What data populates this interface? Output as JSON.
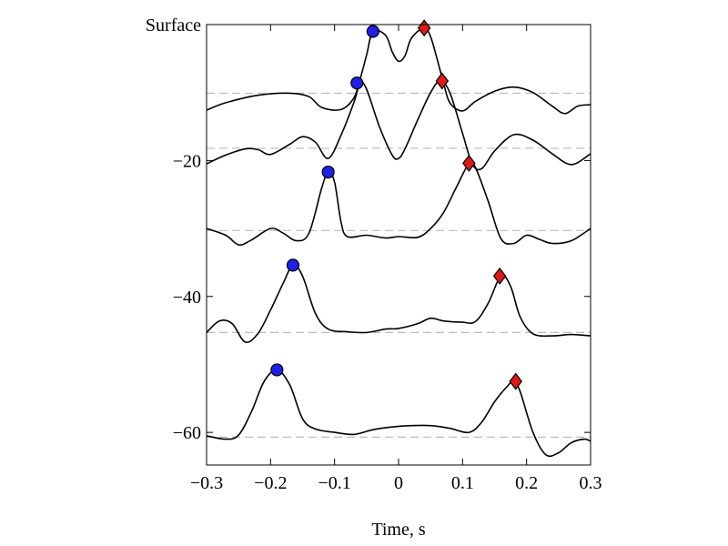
{
  "chart_data": {
    "type": "line",
    "title": "",
    "xlabel": "Time, s",
    "ylabel": "",
    "top_label": "Surface",
    "xlim": [
      -0.3,
      0.3
    ],
    "ylim": [
      -64.8,
      0
    ],
    "x_ticks": [
      -0.3,
      -0.2,
      -0.1,
      0,
      0.1,
      0.2,
      0.3
    ],
    "x_tick_labels": [
      "−0.3",
      "−0.2",
      "−0.1",
      "0",
      "0.1",
      "0.2",
      "0.3"
    ],
    "y_ticks": [
      -20,
      -40,
      -60
    ],
    "y_tick_labels": [
      "−20",
      "−40",
      "−60"
    ],
    "grid": false,
    "colors": {
      "trace": "#000000",
      "baseline": "#bbbbbb",
      "circle": "#1f1fe6",
      "diamond": "#e01818"
    },
    "series": [
      {
        "depth": 0,
        "points": [
          [
            -0.3,
            -12.6
          ],
          [
            -0.27,
            -11.5
          ],
          [
            -0.22,
            -10.4
          ],
          [
            -0.17,
            -10.1
          ],
          [
            -0.14,
            -10.6
          ],
          [
            -0.12,
            -12.2
          ],
          [
            -0.09,
            -12.5
          ],
          [
            -0.07,
            -10.8
          ],
          [
            -0.06,
            -8.0
          ],
          [
            -0.05,
            -4.5
          ],
          [
            -0.04,
            -1.0
          ],
          [
            -0.02,
            -1.6
          ],
          [
            -0.01,
            -4.0
          ],
          [
            0.0,
            -5.4
          ],
          [
            0.01,
            -4.6
          ],
          [
            0.02,
            -2.0
          ],
          [
            0.04,
            -0.5
          ],
          [
            0.05,
            -1.8
          ],
          [
            0.06,
            -5.0
          ],
          [
            0.07,
            -8.5
          ],
          [
            0.08,
            -11.5
          ],
          [
            0.1,
            -12.7
          ],
          [
            0.12,
            -11.3
          ],
          [
            0.15,
            -9.8
          ],
          [
            0.18,
            -9.2
          ],
          [
            0.21,
            -10.0
          ],
          [
            0.24,
            -12.0
          ],
          [
            0.26,
            -13.1
          ],
          [
            0.28,
            -12.0
          ],
          [
            0.3,
            -11.8
          ]
        ]
      },
      {
        "depth": -10,
        "points": [
          [
            -0.3,
            -20.5
          ],
          [
            -0.27,
            -19.2
          ],
          [
            -0.24,
            -18.3
          ],
          [
            -0.22,
            -18.4
          ],
          [
            -0.2,
            -19.1
          ],
          [
            -0.17,
            -17.6
          ],
          [
            -0.15,
            -16.5
          ],
          [
            -0.13,
            -17.3
          ],
          [
            -0.11,
            -19.7
          ],
          [
            -0.09,
            -16.3
          ],
          [
            -0.07,
            -11.5
          ],
          [
            -0.06,
            -8.6
          ],
          [
            -0.05,
            -9.5
          ],
          [
            -0.03,
            -15.0
          ],
          [
            -0.01,
            -19.2
          ],
          [
            0.0,
            -19.7
          ],
          [
            0.01,
            -18.3
          ],
          [
            0.03,
            -14.0
          ],
          [
            0.05,
            -10.0
          ],
          [
            0.065,
            -8.3
          ],
          [
            0.08,
            -10.0
          ],
          [
            0.1,
            -16.0
          ],
          [
            0.115,
            -20.5
          ],
          [
            0.13,
            -21.2
          ],
          [
            0.15,
            -18.6
          ],
          [
            0.18,
            -16.2
          ],
          [
            0.21,
            -17.0
          ],
          [
            0.24,
            -19.0
          ],
          [
            0.27,
            -20.6
          ],
          [
            0.3,
            -19.0
          ]
        ]
      },
      {
        "depth": -20,
        "points": [
          [
            -0.3,
            -30.0
          ],
          [
            -0.27,
            -31.0
          ],
          [
            -0.25,
            -32.4
          ],
          [
            -0.23,
            -31.7
          ],
          [
            -0.2,
            -30.0
          ],
          [
            -0.18,
            -30.7
          ],
          [
            -0.16,
            -31.8
          ],
          [
            -0.14,
            -30.7
          ],
          [
            -0.12,
            -24.0
          ],
          [
            -0.11,
            -21.7
          ],
          [
            -0.1,
            -23.2
          ],
          [
            -0.09,
            -29.0
          ],
          [
            -0.08,
            -31.2
          ],
          [
            -0.05,
            -31.0
          ],
          [
            -0.02,
            -31.4
          ],
          [
            0.0,
            -31.2
          ],
          [
            0.03,
            -31.3
          ],
          [
            0.05,
            -30.0
          ],
          [
            0.07,
            -27.7
          ],
          [
            0.09,
            -24.0
          ],
          [
            0.11,
            -20.4
          ],
          [
            0.12,
            -21.0
          ],
          [
            0.14,
            -26.0
          ],
          [
            0.16,
            -31.5
          ],
          [
            0.18,
            -32.2
          ],
          [
            0.2,
            -31.0
          ],
          [
            0.22,
            -31.6
          ],
          [
            0.24,
            -32.2
          ],
          [
            0.27,
            -31.8
          ],
          [
            0.3,
            -30.0
          ]
        ]
      },
      {
        "depth": -30,
        "points": [
          [
            -0.3,
            -45.3
          ],
          [
            -0.28,
            -43.6
          ],
          [
            -0.26,
            -44.0
          ],
          [
            -0.24,
            -46.7
          ],
          [
            -0.22,
            -45.5
          ],
          [
            -0.2,
            -42.0
          ],
          [
            -0.18,
            -38.0
          ],
          [
            -0.165,
            -35.4
          ],
          [
            -0.15,
            -37.0
          ],
          [
            -0.13,
            -42.5
          ],
          [
            -0.11,
            -44.8
          ],
          [
            -0.08,
            -45.2
          ],
          [
            -0.05,
            -45.3
          ],
          [
            -0.02,
            -44.8
          ],
          [
            0.0,
            -44.7
          ],
          [
            0.03,
            -44.0
          ],
          [
            0.05,
            -43.2
          ],
          [
            0.07,
            -43.6
          ],
          [
            0.1,
            -43.8
          ],
          [
            0.12,
            -43.7
          ],
          [
            0.14,
            -41.0
          ],
          [
            0.16,
            -37.0
          ],
          [
            0.175,
            -38.5
          ],
          [
            0.19,
            -43.0
          ],
          [
            0.21,
            -45.5
          ],
          [
            0.24,
            -45.8
          ],
          [
            0.27,
            -45.6
          ],
          [
            0.3,
            -45.8
          ]
        ]
      },
      {
        "depth": -40,
        "points": [
          [
            -0.3,
            -60.5
          ],
          [
            -0.27,
            -61.0
          ],
          [
            -0.25,
            -60.4
          ],
          [
            -0.23,
            -57.0
          ],
          [
            -0.21,
            -52.5
          ],
          [
            -0.19,
            -50.8
          ],
          [
            -0.17,
            -53.0
          ],
          [
            -0.15,
            -58.0
          ],
          [
            -0.13,
            -59.5
          ],
          [
            -0.1,
            -60.0
          ],
          [
            -0.07,
            -60.3
          ],
          [
            -0.04,
            -59.6
          ],
          [
            -0.01,
            -59.2
          ],
          [
            0.02,
            -59.0
          ],
          [
            0.05,
            -59.0
          ],
          [
            0.08,
            -59.4
          ],
          [
            0.11,
            -60.0
          ],
          [
            0.13,
            -58.5
          ],
          [
            0.15,
            -55.5
          ],
          [
            0.17,
            -53.2
          ],
          [
            0.18,
            -52.5
          ],
          [
            0.19,
            -54.0
          ],
          [
            0.21,
            -60.0
          ],
          [
            0.23,
            -63.3
          ],
          [
            0.25,
            -63.0
          ],
          [
            0.27,
            -61.5
          ],
          [
            0.29,
            -61.0
          ],
          [
            0.3,
            -61.3
          ]
        ]
      }
    ],
    "baselines": [
      -10.1,
      -18.2,
      -30.3,
      -45.3,
      -60.7
    ],
    "circle_markers": [
      [
        -0.04,
        -1.0
      ],
      [
        -0.065,
        -8.6
      ],
      [
        -0.11,
        -21.7
      ],
      [
        -0.165,
        -35.4
      ],
      [
        -0.19,
        -50.8
      ]
    ],
    "diamond_markers": [
      [
        0.04,
        -0.5
      ],
      [
        0.068,
        -8.3
      ],
      [
        0.11,
        -20.4
      ],
      [
        0.158,
        -37.0
      ],
      [
        0.183,
        -52.5
      ]
    ]
  }
}
